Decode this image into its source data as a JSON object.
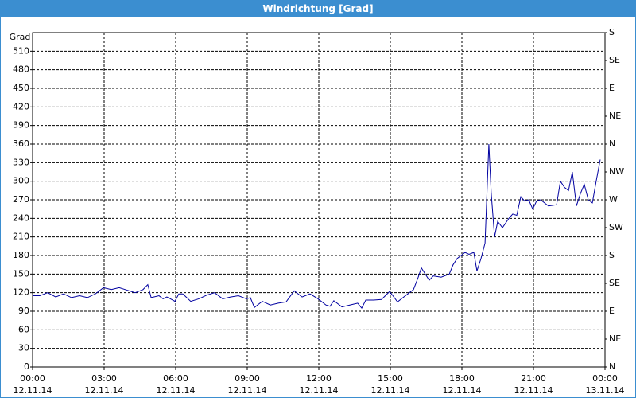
{
  "chart_data": {
    "type": "line",
    "title": "Windrichtung [Grad]",
    "y_label": "Grad",
    "x": [
      0,
      0.3,
      0.63,
      0.97,
      1.3,
      1.63,
      1.97,
      2.3,
      2.63,
      2.97,
      3.3,
      3.63,
      3.97,
      4.3,
      4.63,
      4.83,
      4.97,
      5.3,
      5.47,
      5.63,
      5.97,
      6.13,
      6.3,
      6.63,
      6.97,
      7.3,
      7.63,
      7.97,
      8.3,
      8.63,
      8.97,
      9.13,
      9.3,
      9.63,
      9.97,
      10.3,
      10.63,
      10.97,
      11.3,
      11.63,
      11.97,
      12.3,
      12.47,
      12.63,
      12.97,
      13.3,
      13.63,
      13.8,
      13.97,
      14.3,
      14.63,
      14.97,
      15.3,
      15.63,
      15.97,
      16.17,
      16.3,
      16.63,
      16.8,
      17.13,
      17.47,
      17.63,
      17.8,
      18.13,
      18.3,
      18.5,
      18.63,
      18.8,
      18.97,
      19.13,
      19.23,
      19.37,
      19.5,
      19.7,
      19.97,
      20.13,
      20.3,
      20.47,
      20.63,
      20.8,
      20.97,
      21.13,
      21.3,
      21.63,
      21.97,
      22.13,
      22.3,
      22.47,
      22.63,
      22.8,
      22.97,
      23.13,
      23.3,
      23.47,
      23.63,
      23.8
    ],
    "series": [
      {
        "name": "Windrichtung",
        "color": "#0000a0",
        "values": [
          115,
          115,
          120,
          113,
          118,
          112,
          115,
          112,
          118,
          128,
          125,
          128,
          124,
          120,
          125,
          133,
          112,
          115,
          110,
          113,
          106,
          118,
          118,
          106,
          110,
          116,
          120,
          110,
          113,
          115,
          110,
          112,
          96,
          106,
          100,
          103,
          105,
          123,
          113,
          118,
          110,
          100,
          98,
          107,
          97,
          100,
          103,
          95,
          108,
          108,
          109,
          122,
          105,
          115,
          125,
          145,
          160,
          140,
          147,
          145,
          150,
          165,
          175,
          185,
          182,
          185,
          155,
          175,
          200,
          360,
          280,
          210,
          235,
          225,
          240,
          247,
          245,
          275,
          268,
          270,
          255,
          268,
          270,
          260,
          262,
          300,
          290,
          285,
          315,
          260,
          280,
          295,
          270,
          265,
          300,
          335
        ]
      }
    ],
    "xlim": [
      0,
      24
    ],
    "xticks": [
      {
        "value": 0,
        "label": "00:00"
      },
      {
        "value": 3,
        "label": "03:00"
      },
      {
        "value": 6,
        "label": "06:00"
      },
      {
        "value": 9,
        "label": "09:00"
      },
      {
        "value": 12,
        "label": "12:00"
      },
      {
        "value": 15,
        "label": "15:00"
      },
      {
        "value": 18,
        "label": "18:00"
      },
      {
        "value": 21,
        "label": "21:00"
      },
      {
        "value": 24,
        "label": "00:00"
      }
    ],
    "xtick_dates": [
      "12.11.14",
      "12.11.14",
      "12.11.14",
      "12.11.14",
      "12.11.14",
      "12.11.14",
      "12.11.14",
      "12.11.14",
      "13.11.14"
    ],
    "ylim": [
      0,
      540
    ],
    "yticks": [
      0,
      30,
      60,
      90,
      120,
      150,
      180,
      210,
      240,
      270,
      300,
      330,
      360,
      390,
      420,
      450,
      480,
      510
    ],
    "y2lim": [
      0,
      540
    ],
    "y2ticks": [
      {
        "value": 0,
        "label": "N"
      },
      {
        "value": 45,
        "label": "NE"
      },
      {
        "value": 90,
        "label": "E"
      },
      {
        "value": 135,
        "label": "SE"
      },
      {
        "value": 180,
        "label": "S"
      },
      {
        "value": 225,
        "label": "SW"
      },
      {
        "value": 270,
        "label": "W"
      },
      {
        "value": 315,
        "label": "NW"
      },
      {
        "value": 360,
        "label": "N"
      },
      {
        "value": 405,
        "label": "NE"
      },
      {
        "value": 450,
        "label": "E"
      },
      {
        "value": 495,
        "label": "SE"
      },
      {
        "value": 540,
        "label": "S"
      }
    ],
    "grid": true
  }
}
